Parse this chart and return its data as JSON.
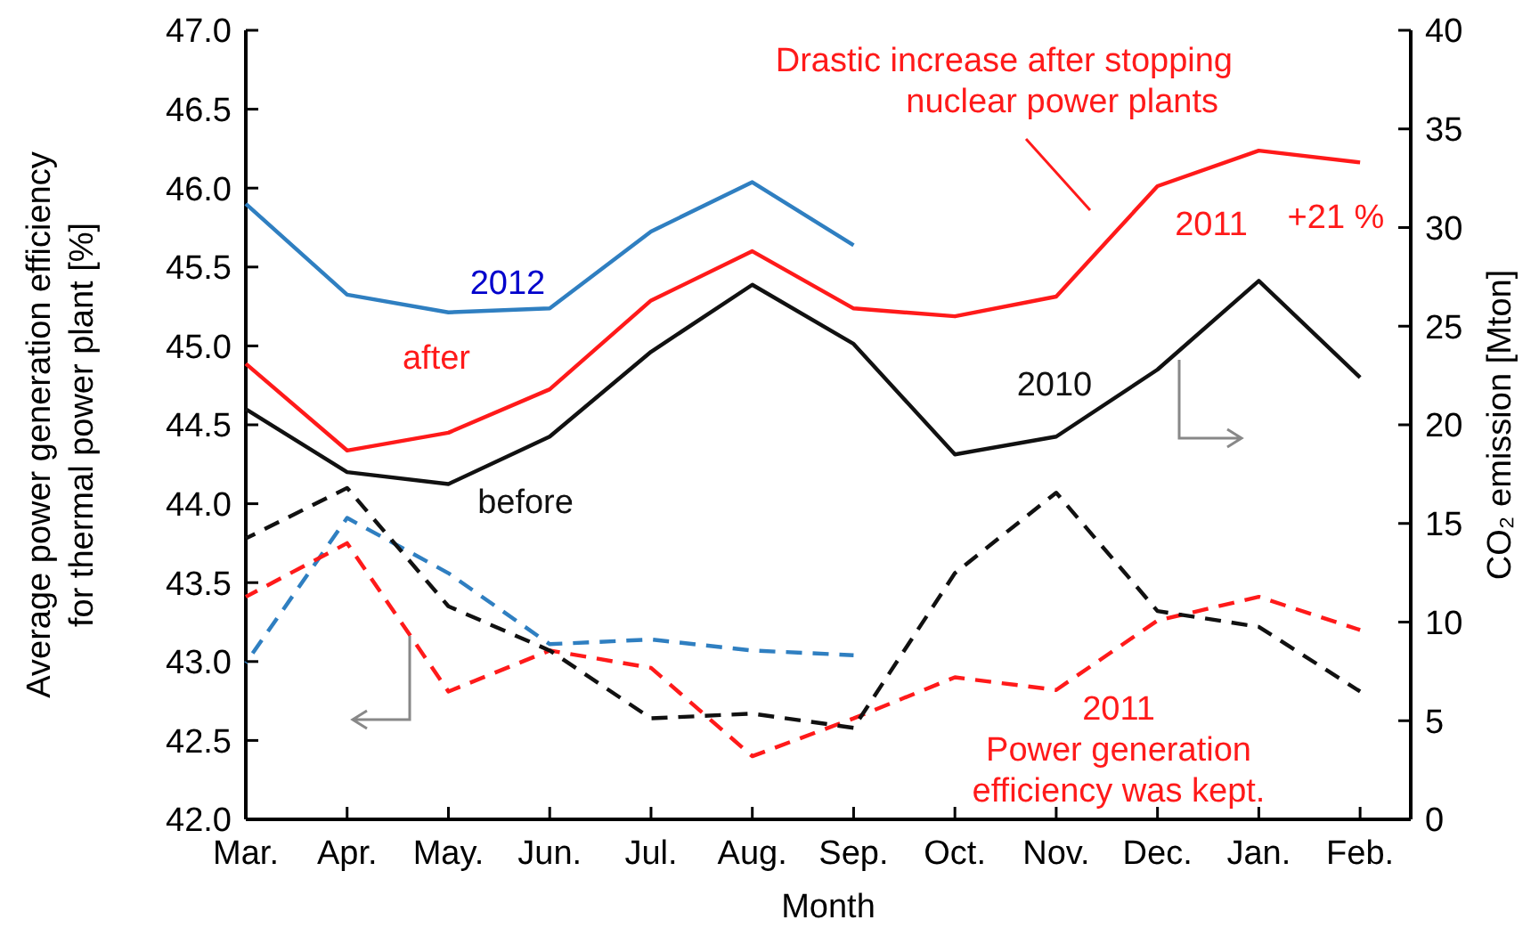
{
  "chart_data": {
    "type": "line",
    "xlabel": "Month",
    "ylabel": "Average power generation efficiency\nfor thermal power plant [%]",
    "y2label": "CO₂ emission [Mton]",
    "categories": [
      "Mar.",
      "Apr.",
      "May.",
      "Jun.",
      "Jul.",
      "Aug.",
      "Sep.",
      "Oct.",
      "Nov.",
      "Dec.",
      "Jan.",
      "Feb."
    ],
    "ylim": [
      42,
      47
    ],
    "yticks": [
      {
        "value": 42,
        "label": "42.0"
      },
      {
        "value": 42.5,
        "label": "42.5"
      },
      {
        "value": 43,
        "label": "43.0"
      },
      {
        "value": 43.5,
        "label": "43.5"
      },
      {
        "value": 44,
        "label": "44.0"
      },
      {
        "value": 44.5,
        "label": "44.5"
      },
      {
        "value": 45,
        "label": "45.0"
      },
      {
        "value": 45.5,
        "label": "45.5"
      },
      {
        "value": 46,
        "label": "46.0"
      },
      {
        "value": 46.5,
        "label": "46.5"
      },
      {
        "value": 47,
        "label": "47.0"
      }
    ],
    "y2lim": [
      0,
      40
    ],
    "y2ticks": [
      0,
      5,
      10,
      15,
      20,
      25,
      30,
      35,
      40
    ],
    "grid": false,
    "marker": "none",
    "series": [
      {
        "color": "#2f7fc1",
        "axis": "y2",
        "line_style": "solid",
        "values": [
          31.2,
          26.6,
          25.7,
          25.9,
          29.8,
          32.3,
          29.1,
          null,
          null,
          null,
          null,
          null
        ]
      },
      {
        "color": "#ff1a1a",
        "axis": "y2",
        "line_style": "solid",
        "values": [
          23.1,
          18.7,
          19.6,
          21.8,
          26.3,
          28.8,
          25.9,
          25.5,
          26.5,
          32.1,
          33.9,
          33.3
        ]
      },
      {
        "color": "#111111",
        "axis": "y2",
        "line_style": "solid",
        "values": [
          20.8,
          17.6,
          17.0,
          19.4,
          23.7,
          27.1,
          24.1,
          18.5,
          19.4,
          22.8,
          27.3,
          22.4
        ]
      },
      {
        "color": "#2f7fc1",
        "axis": "y",
        "line_style": "dashed",
        "values": [
          42.99,
          43.91,
          43.56,
          43.11,
          43.14,
          43.07,
          43.04,
          null,
          null,
          null,
          null,
          null
        ]
      },
      {
        "color": "#ff1a1a",
        "axis": "y",
        "line_style": "dashed",
        "values": [
          43.41,
          43.75,
          42.81,
          43.07,
          42.96,
          42.4,
          42.64,
          42.9,
          42.82,
          43.26,
          43.41,
          43.2
        ]
      },
      {
        "color": "#111111",
        "axis": "y",
        "line_style": "dashed",
        "values": [
          43.78,
          44.1,
          43.35,
          43.07,
          42.64,
          42.67,
          42.58,
          43.56,
          44.07,
          43.32,
          43.22,
          42.81
        ]
      }
    ],
    "annotations": [
      "Drastic increase after stopping\nnuclear power plants",
      "2012",
      "after",
      "before",
      "2010",
      "2011",
      "+21 %",
      "2011\nPower generation\nefficiency was kept."
    ]
  }
}
